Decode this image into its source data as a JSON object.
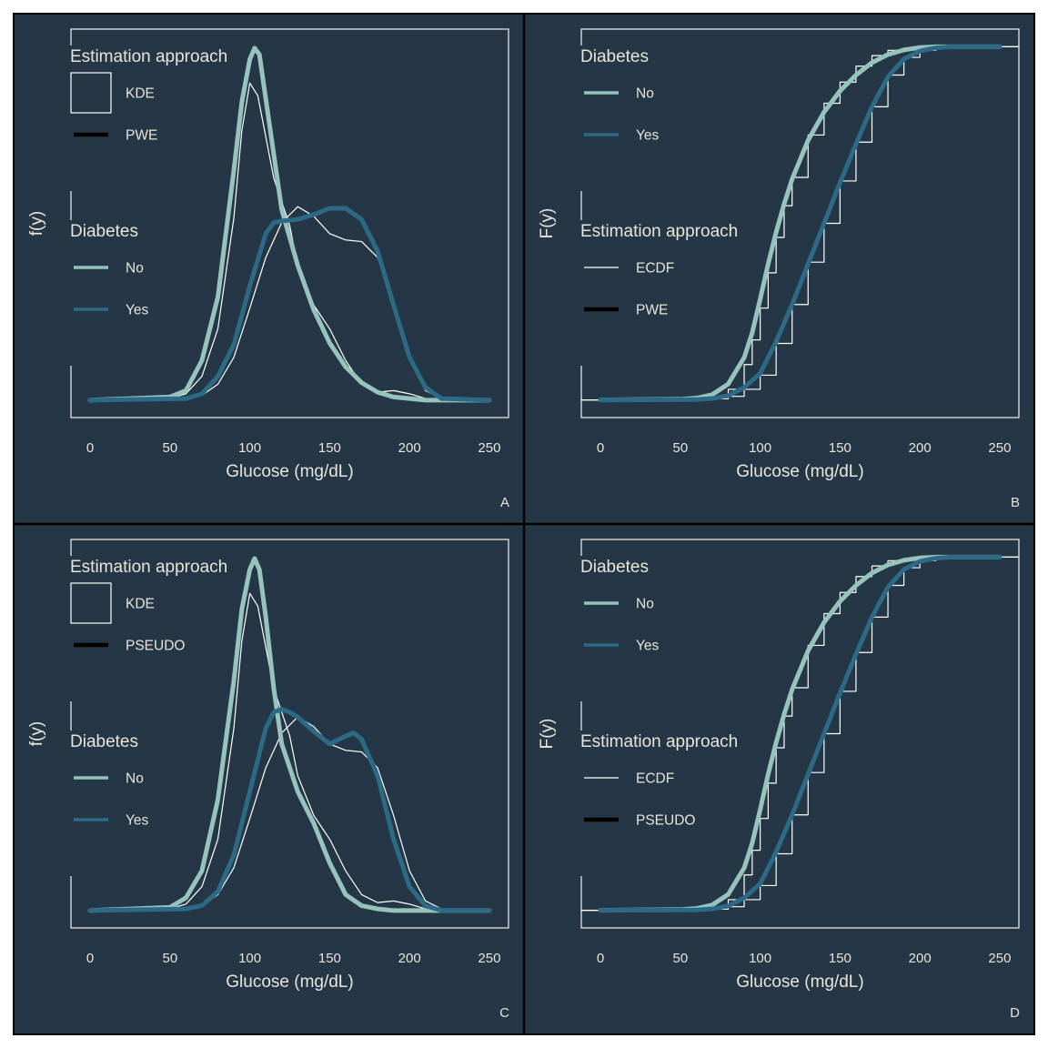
{
  "colors": {
    "background": "#253746",
    "page": "#ffffff",
    "border": "#000000",
    "frame": "#e8e4d9",
    "text": "#e8e4d9",
    "no": "#97c3bd",
    "yes": "#2d6a86",
    "thin": "#ffffff",
    "legend_black": "#000000"
  },
  "chart_data": [
    {
      "panel_tag": "A",
      "type": "line",
      "xlabel": "Glucose (mg/dL)",
      "ylabel": "f(y)",
      "xlim": [
        -12,
        262
      ],
      "x_ticks": [
        0,
        50,
        100,
        150,
        200,
        250
      ],
      "ylim": [
        -0.0011,
        0.0234
      ],
      "y_tick_labels_shown": false,
      "legend": {
        "position": "left",
        "groups": [
          {
            "title": "Estimation approach",
            "entries": [
              {
                "label": "KDE",
                "key": "box"
              },
              {
                "label": "PWE",
                "key": "thick-black"
              }
            ]
          },
          {
            "title": "Diabetes",
            "entries": [
              {
                "label": "No",
                "key": "no"
              },
              {
                "label": "Yes",
                "key": "yes"
              }
            ]
          }
        ]
      },
      "series": [
        {
          "name": "KDE",
          "group": "No",
          "style": "thin",
          "x": [
            0,
            50,
            60,
            70,
            80,
            90,
            95,
            100,
            105,
            110,
            115,
            120,
            125,
            130,
            140,
            150,
            160,
            170,
            180,
            190,
            200,
            210,
            220,
            250
          ],
          "y": [
            0,
            0.0001,
            0.0004,
            0.0015,
            0.0045,
            0.0115,
            0.017,
            0.02,
            0.0192,
            0.0166,
            0.014,
            0.0125,
            0.011,
            0.0085,
            0.006,
            0.0045,
            0.0025,
            0.001,
            0.0005,
            0.0006,
            0.0004,
            0.0001,
            0,
            0
          ]
        },
        {
          "name": "KDE",
          "group": "Yes",
          "style": "thin",
          "x": [
            0,
            60,
            70,
            80,
            90,
            100,
            110,
            120,
            130,
            140,
            150,
            160,
            170,
            180,
            190,
            200,
            210,
            220,
            250
          ],
          "y": [
            0,
            0.0001,
            0.0003,
            0.001,
            0.0027,
            0.0058,
            0.009,
            0.0112,
            0.0122,
            0.0116,
            0.0105,
            0.0101,
            0.01,
            0.009,
            0.006,
            0.0025,
            0.0006,
            0.0001,
            0
          ]
        },
        {
          "name": "PWE",
          "group": "No",
          "style": "thick",
          "x": [
            0,
            50,
            60,
            70,
            80,
            90,
            95,
            100,
            103,
            106,
            110,
            115,
            120,
            130,
            140,
            150,
            160,
            170,
            180,
            190,
            200,
            210,
            220,
            250
          ],
          "y": [
            0,
            0.0002,
            0.0006,
            0.0025,
            0.0065,
            0.0145,
            0.0188,
            0.0215,
            0.0222,
            0.0218,
            0.019,
            0.0155,
            0.012,
            0.0085,
            0.0057,
            0.0036,
            0.0021,
            0.0011,
            0.0005,
            0.0002,
            0.0001,
            0,
            0,
            0
          ]
        },
        {
          "name": "PWE",
          "group": "Yes",
          "style": "thick",
          "x": [
            0,
            60,
            70,
            80,
            90,
            100,
            110,
            115,
            120,
            130,
            140,
            150,
            160,
            170,
            180,
            190,
            200,
            210,
            220,
            250
          ],
          "y": [
            0,
            0.0001,
            0.0004,
            0.0015,
            0.0035,
            0.0072,
            0.0105,
            0.0112,
            0.0113,
            0.0114,
            0.0117,
            0.0121,
            0.0121,
            0.0114,
            0.0094,
            0.006,
            0.0027,
            0.0008,
            0.0001,
            0
          ]
        }
      ]
    },
    {
      "panel_tag": "B",
      "type": "line",
      "xlabel": "Glucose (mg/dL)",
      "ylabel": "F(y)",
      "xlim": [
        -12,
        262
      ],
      "x_ticks": [
        0,
        50,
        100,
        150,
        200,
        250
      ],
      "ylim": [
        -0.05,
        1.05
      ],
      "y_tick_labels_shown": false,
      "legend": {
        "position": "left",
        "groups": [
          {
            "title": "Diabetes",
            "entries": [
              {
                "label": "No",
                "key": "no"
              },
              {
                "label": "Yes",
                "key": "yes"
              }
            ]
          },
          {
            "title": "Estimation approach",
            "entries": [
              {
                "label": "ECDF",
                "key": "thin-white"
              },
              {
                "label": "PWE",
                "key": "thick-black"
              }
            ]
          }
        ]
      },
      "series": [
        {
          "name": "ECDF",
          "group": "No",
          "style": "step",
          "x": [
            -12,
            60,
            70,
            80,
            90,
            95,
            100,
            105,
            110,
            115,
            120,
            130,
            140,
            150,
            160,
            170,
            180,
            190,
            200,
            210,
            262
          ],
          "y": [
            0,
            0.002,
            0.008,
            0.03,
            0.1,
            0.17,
            0.26,
            0.36,
            0.46,
            0.55,
            0.63,
            0.75,
            0.84,
            0.9,
            0.945,
            0.975,
            0.99,
            0.996,
            1.0,
            1.0,
            1.0
          ]
        },
        {
          "name": "ECDF",
          "group": "Yes",
          "style": "step",
          "x": [
            -12,
            70,
            80,
            90,
            100,
            110,
            120,
            130,
            140,
            150,
            160,
            170,
            180,
            190,
            200,
            210,
            220,
            262
          ],
          "y": [
            0,
            0.003,
            0.01,
            0.03,
            0.07,
            0.16,
            0.27,
            0.39,
            0.5,
            0.62,
            0.73,
            0.83,
            0.92,
            0.97,
            0.99,
            0.998,
            1.0,
            1.0
          ]
        },
        {
          "name": "PWE",
          "group": "No",
          "style": "thick",
          "x": [
            0,
            50,
            60,
            70,
            80,
            90,
            95,
            100,
            105,
            110,
            115,
            120,
            130,
            140,
            150,
            160,
            170,
            180,
            190,
            200,
            210,
            250
          ],
          "y": [
            0,
            0.002,
            0.005,
            0.015,
            0.045,
            0.12,
            0.19,
            0.285,
            0.385,
            0.475,
            0.555,
            0.625,
            0.735,
            0.815,
            0.875,
            0.92,
            0.955,
            0.978,
            0.991,
            0.998,
            1.0,
            1.0
          ]
        },
        {
          "name": "PWE",
          "group": "Yes",
          "style": "thick",
          "x": [
            0,
            60,
            70,
            80,
            90,
            100,
            110,
            120,
            130,
            140,
            150,
            160,
            170,
            180,
            190,
            200,
            210,
            220,
            250
          ],
          "y": [
            0,
            0.001,
            0.004,
            0.012,
            0.035,
            0.075,
            0.165,
            0.27,
            0.385,
            0.5,
            0.615,
            0.725,
            0.83,
            0.915,
            0.965,
            0.988,
            0.997,
            1.0,
            1.0
          ]
        }
      ]
    },
    {
      "panel_tag": "C",
      "type": "line",
      "xlabel": "Glucose (mg/dL)",
      "ylabel": "f(y)",
      "xlim": [
        -12,
        262
      ],
      "x_ticks": [
        0,
        50,
        100,
        150,
        200,
        250
      ],
      "ylim": [
        -0.0011,
        0.0234
      ],
      "y_tick_labels_shown": false,
      "legend": {
        "position": "left",
        "groups": [
          {
            "title": "Estimation approach",
            "entries": [
              {
                "label": "KDE",
                "key": "box"
              },
              {
                "label": "PSEUDO",
                "key": "thick-black"
              }
            ]
          },
          {
            "title": "Diabetes",
            "entries": [
              {
                "label": "No",
                "key": "no"
              },
              {
                "label": "Yes",
                "key": "yes"
              }
            ]
          }
        ]
      },
      "series": [
        {
          "name": "KDE",
          "group": "No",
          "style": "thin",
          "x": [
            0,
            50,
            60,
            70,
            80,
            90,
            95,
            100,
            105,
            110,
            115,
            120,
            125,
            130,
            140,
            150,
            160,
            170,
            180,
            190,
            200,
            210,
            220,
            250
          ],
          "y": [
            0,
            0.0001,
            0.0004,
            0.0015,
            0.0045,
            0.0115,
            0.017,
            0.02,
            0.0192,
            0.0166,
            0.014,
            0.0125,
            0.011,
            0.0085,
            0.006,
            0.0045,
            0.0025,
            0.001,
            0.0005,
            0.0006,
            0.0004,
            0.0001,
            0,
            0
          ]
        },
        {
          "name": "KDE",
          "group": "Yes",
          "style": "thin",
          "x": [
            0,
            60,
            70,
            80,
            90,
            100,
            110,
            120,
            130,
            140,
            150,
            160,
            170,
            180,
            190,
            200,
            210,
            220,
            250
          ],
          "y": [
            0,
            0.0001,
            0.0003,
            0.001,
            0.0027,
            0.0058,
            0.009,
            0.0112,
            0.0122,
            0.0116,
            0.0105,
            0.0101,
            0.01,
            0.009,
            0.006,
            0.0025,
            0.0006,
            0.0001,
            0
          ]
        },
        {
          "name": "PSEUDO",
          "group": "No",
          "style": "thick",
          "x": [
            0,
            50,
            60,
            70,
            80,
            90,
            95,
            100,
            103,
            106,
            110,
            115,
            120,
            125,
            130,
            140,
            150,
            160,
            170,
            180,
            190,
            200,
            210,
            250
          ],
          "y": [
            0,
            0.0002,
            0.0008,
            0.0025,
            0.007,
            0.0145,
            0.019,
            0.0215,
            0.0222,
            0.0215,
            0.0185,
            0.014,
            0.0105,
            0.009,
            0.0075,
            0.0055,
            0.003,
            0.001,
            0.0003,
            0.0001,
            0,
            0,
            0,
            0
          ]
        },
        {
          "name": "PSEUDO",
          "group": "Yes",
          "style": "thick",
          "x": [
            0,
            60,
            70,
            80,
            90,
            100,
            110,
            115,
            120,
            125,
            130,
            140,
            150,
            160,
            165,
            170,
            180,
            190,
            200,
            210,
            220,
            250
          ],
          "y": [
            0,
            0.0001,
            0.0003,
            0.0012,
            0.0035,
            0.0075,
            0.0115,
            0.0125,
            0.0127,
            0.0125,
            0.0122,
            0.0113,
            0.0105,
            0.011,
            0.0112,
            0.0108,
            0.0085,
            0.0045,
            0.0015,
            0.0003,
            0,
            0
          ]
        }
      ]
    },
    {
      "panel_tag": "D",
      "type": "line",
      "xlabel": "Glucose (mg/dL)",
      "ylabel": "F(y)",
      "xlim": [
        -12,
        262
      ],
      "x_ticks": [
        0,
        50,
        100,
        150,
        200,
        250
      ],
      "ylim": [
        -0.05,
        1.05
      ],
      "y_tick_labels_shown": false,
      "legend": {
        "position": "left",
        "groups": [
          {
            "title": "Diabetes",
            "entries": [
              {
                "label": "No",
                "key": "no"
              },
              {
                "label": "Yes",
                "key": "yes"
              }
            ]
          },
          {
            "title": "Estimation approach",
            "entries": [
              {
                "label": "ECDF",
                "key": "thin-white"
              },
              {
                "label": "PSEUDO",
                "key": "thick-black"
              }
            ]
          }
        ]
      },
      "series": [
        {
          "name": "ECDF",
          "group": "No",
          "style": "step",
          "x": [
            -12,
            60,
            70,
            80,
            90,
            95,
            100,
            105,
            110,
            115,
            120,
            130,
            140,
            150,
            160,
            170,
            180,
            190,
            200,
            210,
            262
          ],
          "y": [
            0,
            0.002,
            0.008,
            0.03,
            0.1,
            0.17,
            0.26,
            0.36,
            0.46,
            0.55,
            0.63,
            0.75,
            0.84,
            0.9,
            0.945,
            0.975,
            0.99,
            0.996,
            1.0,
            1.0,
            1.0
          ]
        },
        {
          "name": "ECDF",
          "group": "Yes",
          "style": "step",
          "x": [
            -12,
            70,
            80,
            90,
            100,
            110,
            120,
            130,
            140,
            150,
            160,
            170,
            180,
            190,
            200,
            210,
            220,
            262
          ],
          "y": [
            0,
            0.003,
            0.01,
            0.03,
            0.07,
            0.16,
            0.27,
            0.39,
            0.5,
            0.62,
            0.73,
            0.83,
            0.92,
            0.97,
            0.99,
            0.998,
            1.0,
            1.0
          ]
        },
        {
          "name": "PSEUDO",
          "group": "No",
          "style": "thick",
          "x": [
            0,
            50,
            60,
            70,
            80,
            90,
            95,
            100,
            105,
            110,
            115,
            120,
            130,
            140,
            150,
            160,
            170,
            180,
            190,
            200,
            210,
            250
          ],
          "y": [
            0,
            0.002,
            0.005,
            0.015,
            0.045,
            0.12,
            0.19,
            0.285,
            0.385,
            0.475,
            0.555,
            0.625,
            0.735,
            0.815,
            0.875,
            0.92,
            0.955,
            0.978,
            0.991,
            0.998,
            1.0,
            1.0
          ]
        },
        {
          "name": "PSEUDO",
          "group": "Yes",
          "style": "thick",
          "x": [
            0,
            60,
            70,
            80,
            90,
            100,
            110,
            120,
            130,
            140,
            150,
            160,
            170,
            180,
            190,
            200,
            210,
            220,
            250
          ],
          "y": [
            0,
            0.001,
            0.004,
            0.012,
            0.035,
            0.075,
            0.165,
            0.27,
            0.385,
            0.5,
            0.615,
            0.725,
            0.83,
            0.915,
            0.965,
            0.988,
            0.997,
            1.0,
            1.0
          ]
        }
      ]
    }
  ]
}
